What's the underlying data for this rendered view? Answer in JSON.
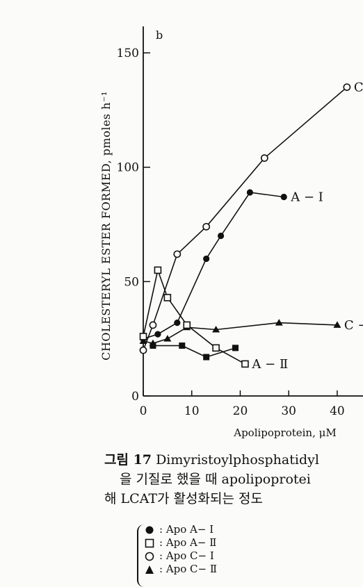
{
  "chart_data": {
    "type": "line",
    "panel_label": "b",
    "ylabel": "CHOLESTERYL ESTER FORMED, pmoles h⁻¹",
    "xlabel": "Apolipoprotein, μM",
    "xlim": [
      0,
      45
    ],
    "ylim": [
      0,
      160
    ],
    "xticks": [
      0,
      10,
      20,
      30,
      40
    ],
    "yticks": [
      0,
      50,
      100,
      150
    ],
    "grid": false,
    "series": [
      {
        "name": "C-I",
        "marker": "open-circle",
        "x": [
          0,
          2,
          7,
          13,
          25,
          42
        ],
        "y": [
          20,
          31,
          62,
          74,
          104,
          135
        ]
      },
      {
        "name": "A-I",
        "marker": "filled-circle",
        "x": [
          0,
          3,
          7,
          13,
          16,
          22,
          29
        ],
        "y": [
          25,
          27,
          32,
          60,
          70,
          89,
          87
        ]
      },
      {
        "name": "C-II",
        "marker": "filled-triangle",
        "x": [
          0,
          2,
          5,
          9,
          15,
          28,
          40
        ],
        "y": [
          24,
          23,
          25,
          30,
          29,
          32,
          31
        ]
      },
      {
        "name": "A-II",
        "marker": "open-square",
        "x": [
          0,
          3,
          5,
          9,
          15,
          21
        ],
        "y": [
          26,
          55,
          43,
          31,
          21,
          14
        ]
      },
      {
        "name": "",
        "marker": "filled-square",
        "x": [
          2,
          8,
          13,
          19
        ],
        "y": [
          22,
          22,
          17,
          21
        ]
      }
    ],
    "curve_labels": [
      {
        "series": "C-I",
        "text": "C-"
      },
      {
        "series": "A-I",
        "text": "A − Ⅰ"
      },
      {
        "series": "C-II",
        "text": "C −"
      },
      {
        "series": "A-II",
        "text": "A − Ⅱ"
      }
    ]
  },
  "caption": {
    "fig_no": "그림  17",
    "line1": "Dimyristoylphosphatidyl",
    "line2": "을 기질로 했을 때 apolipoprotei",
    "line3": "해 LCAT가 활성화되는 정도"
  },
  "legend": [
    {
      "symbol": "filled-circle",
      "label": ": Apo A− Ⅰ"
    },
    {
      "symbol": "open-square",
      "label": ": Apo A− Ⅱ"
    },
    {
      "symbol": "open-circle",
      "label": ": Apo C− Ⅰ"
    },
    {
      "symbol": "filled-triangle",
      "label": ": Apo C− Ⅱ"
    }
  ]
}
